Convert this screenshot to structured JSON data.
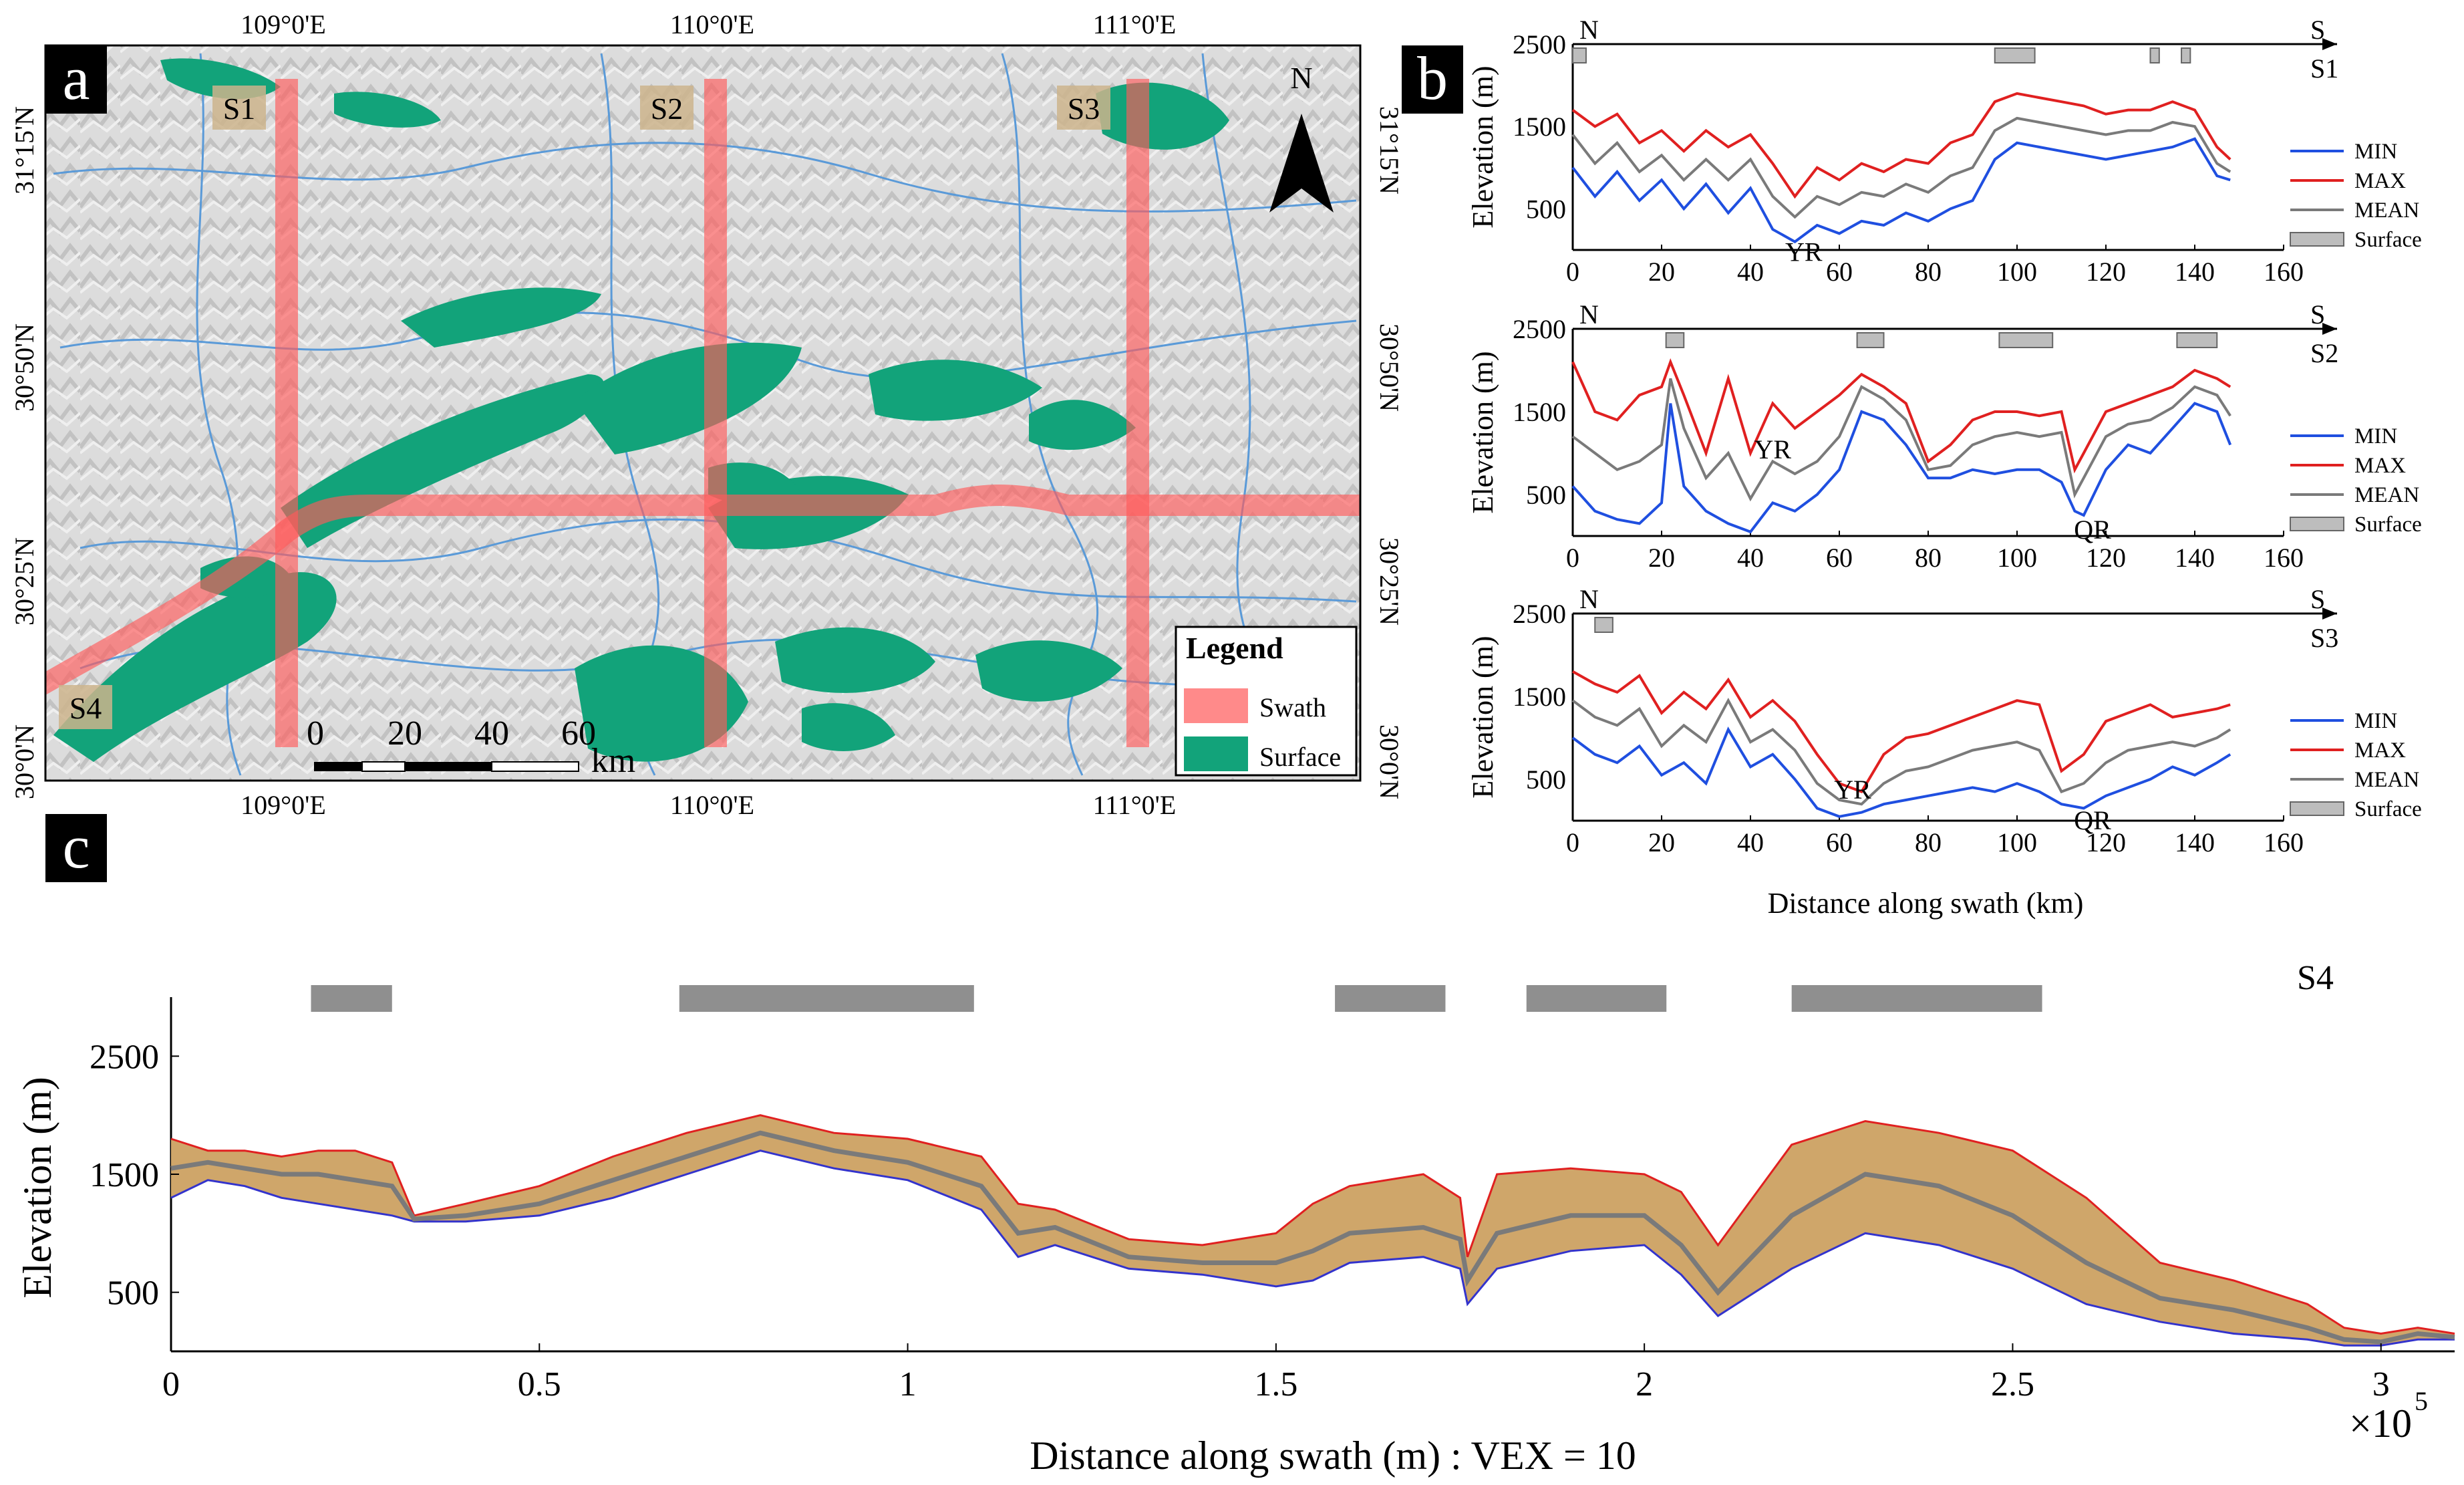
{
  "panels": {
    "a": "a",
    "b": "b",
    "c": "c"
  },
  "map": {
    "top_ticks": [
      "109°0'E",
      "110°0'E",
      "111°0'E"
    ],
    "bottom_ticks": [
      "109°0'E",
      "110°0'E",
      "111°0'E"
    ],
    "left_ticks": [
      "31°15'N",
      "30°50'N",
      "30°25'N",
      "30°0'N"
    ],
    "right_ticks": [
      "31°15'N",
      "30°50'N",
      "30°25'N",
      "30°0'N"
    ],
    "swath_labels": [
      "S1",
      "S2",
      "S3",
      "S4"
    ],
    "north_label": "N",
    "scale_ticks": [
      "0",
      "20",
      "40",
      "60"
    ],
    "scale_unit": "km",
    "legend": {
      "title": "Legend",
      "items": [
        {
          "label": "Swath",
          "color": "#ff7d7d"
        },
        {
          "label": "Surface",
          "color": "#12a37a"
        }
      ]
    },
    "colors": {
      "hillshade": "#d8d8d8",
      "river": "#5a9ad8",
      "swath": "#ff5a5a",
      "surface": "#12a37a"
    }
  },
  "chart_data": [
    {
      "id": "S1",
      "type": "line",
      "title": "S1",
      "direction": {
        "start": "N",
        "end": "S"
      },
      "xlabel": "",
      "ylabel": "Elevation (m)",
      "xlim": [
        0,
        160
      ],
      "ylim": [
        0,
        2500
      ],
      "xticks": [
        0,
        20,
        40,
        60,
        80,
        100,
        120,
        140,
        160
      ],
      "yticks": [
        500,
        1500,
        2500
      ],
      "x": [
        0,
        5,
        10,
        15,
        20,
        25,
        30,
        35,
        40,
        45,
        50,
        55,
        60,
        65,
        70,
        75,
        80,
        85,
        90,
        95,
        100,
        105,
        110,
        115,
        120,
        125,
        130,
        135,
        140,
        145,
        148
      ],
      "series": [
        {
          "name": "MIN",
          "color": "#1f4fe0",
          "values": [
            1000,
            650,
            950,
            600,
            850,
            500,
            800,
            450,
            750,
            250,
            100,
            300,
            200,
            350,
            300,
            450,
            350,
            500,
            600,
            1100,
            1300,
            1250,
            1200,
            1150,
            1100,
            1150,
            1200,
            1250,
            1350,
            900,
            850
          ]
        },
        {
          "name": "MAX",
          "color": "#e02020",
          "values": [
            1700,
            1500,
            1650,
            1300,
            1450,
            1200,
            1450,
            1250,
            1400,
            1050,
            650,
            1000,
            850,
            1050,
            950,
            1100,
            1050,
            1300,
            1400,
            1800,
            1900,
            1850,
            1800,
            1750,
            1650,
            1700,
            1700,
            1800,
            1700,
            1250,
            1100
          ]
        },
        {
          "name": "MEAN",
          "color": "#7a7a7a",
          "values": [
            1400,
            1050,
            1300,
            950,
            1150,
            850,
            1100,
            850,
            1100,
            650,
            400,
            650,
            550,
            700,
            650,
            800,
            700,
            900,
            1000,
            1450,
            1600,
            1550,
            1500,
            1450,
            1400,
            1450,
            1450,
            1550,
            1500,
            1050,
            950
          ]
        }
      ],
      "surface_ranges": [
        [
          0,
          3
        ],
        [
          95,
          104
        ],
        [
          130,
          132
        ],
        [
          137,
          139
        ]
      ],
      "surface_label": "Surface",
      "annotations": [
        {
          "text": "YR",
          "x": 52,
          "y": -20
        }
      ]
    },
    {
      "id": "S2",
      "type": "line",
      "title": "S2",
      "direction": {
        "start": "N",
        "end": "S"
      },
      "xlabel": "",
      "ylabel": "Elevation (m)",
      "xlim": [
        0,
        160
      ],
      "ylim": [
        0,
        2500
      ],
      "xticks": [
        0,
        20,
        40,
        60,
        80,
        100,
        120,
        140,
        160
      ],
      "yticks": [
        500,
        1500,
        2500
      ],
      "x": [
        0,
        5,
        10,
        15,
        20,
        22,
        25,
        30,
        35,
        40,
        45,
        50,
        55,
        60,
        65,
        70,
        75,
        80,
        85,
        90,
        95,
        100,
        105,
        110,
        113,
        115,
        120,
        125,
        130,
        135,
        140,
        145,
        148
      ],
      "series": [
        {
          "name": "MIN",
          "color": "#1f4fe0",
          "values": [
            600,
            300,
            200,
            150,
            400,
            1600,
            600,
            300,
            150,
            50,
            400,
            300,
            500,
            800,
            1500,
            1400,
            1100,
            700,
            700,
            800,
            750,
            800,
            800,
            650,
            300,
            250,
            800,
            1100,
            1000,
            1300,
            1600,
            1500,
            1100
          ]
        },
        {
          "name": "MAX",
          "color": "#e02020",
          "values": [
            2100,
            1500,
            1400,
            1700,
            1800,
            2100,
            1700,
            1000,
            1900,
            1000,
            1600,
            1300,
            1500,
            1700,
            1950,
            1800,
            1600,
            900,
            1100,
            1400,
            1500,
            1500,
            1450,
            1500,
            800,
            1000,
            1500,
            1600,
            1700,
            1800,
            2000,
            1900,
            1800
          ]
        },
        {
          "name": "MEAN",
          "color": "#7a7a7a",
          "values": [
            1200,
            1000,
            800,
            900,
            1100,
            1900,
            1300,
            700,
            1000,
            450,
            900,
            750,
            900,
            1200,
            1800,
            1650,
            1400,
            800,
            850,
            1100,
            1200,
            1250,
            1200,
            1250,
            500,
            700,
            1200,
            1350,
            1400,
            1550,
            1800,
            1700,
            1450
          ]
        }
      ],
      "surface_ranges": [
        [
          21,
          25
        ],
        [
          64,
          70
        ],
        [
          96,
          108
        ],
        [
          136,
          145
        ]
      ],
      "surface_label": "Surface",
      "annotations": [
        {
          "text": "YR",
          "x": 45,
          "y": 1050
        },
        {
          "text": "QR",
          "x": 117,
          "y": 80
        }
      ]
    },
    {
      "id": "S3",
      "type": "line",
      "title": "S3",
      "direction": {
        "start": "N",
        "end": "S"
      },
      "xlabel": "Distance along swath (km)",
      "ylabel": "Elevation (m)",
      "xlim": [
        0,
        160
      ],
      "ylim": [
        0,
        2500
      ],
      "xticks": [
        0,
        20,
        40,
        60,
        80,
        100,
        120,
        140,
        160
      ],
      "yticks": [
        500,
        1500,
        2500
      ],
      "x": [
        0,
        5,
        10,
        15,
        20,
        25,
        30,
        35,
        40,
        45,
        50,
        55,
        60,
        65,
        70,
        75,
        80,
        85,
        90,
        95,
        100,
        105,
        110,
        115,
        120,
        125,
        130,
        135,
        140,
        145,
        148
      ],
      "series": [
        {
          "name": "MIN",
          "color": "#1f4fe0",
          "values": [
            1000,
            800,
            700,
            900,
            550,
            700,
            450,
            1100,
            650,
            800,
            500,
            150,
            50,
            100,
            200,
            250,
            300,
            350,
            400,
            350,
            450,
            350,
            200,
            150,
            300,
            400,
            500,
            650,
            550,
            700,
            800
          ]
        },
        {
          "name": "MAX",
          "color": "#e02020",
          "values": [
            1800,
            1650,
            1550,
            1750,
            1300,
            1550,
            1350,
            1700,
            1250,
            1450,
            1200,
            800,
            450,
            350,
            800,
            1000,
            1050,
            1150,
            1250,
            1350,
            1450,
            1400,
            600,
            800,
            1200,
            1300,
            1400,
            1250,
            1300,
            1350,
            1400
          ]
        },
        {
          "name": "MEAN",
          "color": "#7a7a7a",
          "values": [
            1450,
            1250,
            1150,
            1350,
            900,
            1150,
            950,
            1450,
            950,
            1100,
            850,
            450,
            250,
            200,
            450,
            600,
            650,
            750,
            850,
            900,
            950,
            850,
            350,
            450,
            700,
            850,
            900,
            950,
            900,
            1000,
            1100
          ]
        }
      ],
      "surface_ranges": [
        [
          5,
          9
        ]
      ],
      "surface_label": "Surface",
      "annotations": [
        {
          "text": "YR",
          "x": 63,
          "y": 380
        },
        {
          "text": "QR",
          "x": 117,
          "y": 10
        }
      ]
    },
    {
      "id": "S4",
      "type": "area",
      "title": "S4",
      "xlabel": "Distance along swath (m) : VEX = 10",
      "x_multiplier": "×10",
      "x_multiplier_exp": "5",
      "ylabel": "Elevation (m)",
      "xlim": [
        0,
        3.1
      ],
      "ylim": [
        0,
        3000
      ],
      "xticks": [
        0,
        0.5,
        1,
        1.5,
        2,
        2.5,
        3
      ],
      "xtick_labels": [
        "0",
        "0.5",
        "1",
        "1.5",
        "2",
        "2.5",
        "3"
      ],
      "yticks": [
        500,
        1500,
        2500
      ],
      "x": [
        0,
        0.05,
        0.1,
        0.15,
        0.2,
        0.25,
        0.3,
        0.33,
        0.4,
        0.5,
        0.6,
        0.7,
        0.8,
        0.9,
        1.0,
        1.1,
        1.15,
        1.2,
        1.3,
        1.4,
        1.5,
        1.55,
        1.6,
        1.7,
        1.75,
        1.76,
        1.8,
        1.9,
        2.0,
        2.05,
        2.1,
        2.2,
        2.3,
        2.4,
        2.5,
        2.55,
        2.6,
        2.7,
        2.8,
        2.9,
        2.95,
        3.0,
        3.05,
        3.1
      ],
      "series": [
        {
          "name": "MAX",
          "color": "#e02020",
          "values": [
            1800,
            1700,
            1700,
            1650,
            1700,
            1700,
            1600,
            1150,
            1250,
            1400,
            1650,
            1850,
            2000,
            1850,
            1800,
            1650,
            1250,
            1200,
            950,
            900,
            1000,
            1250,
            1400,
            1500,
            1300,
            800,
            1500,
            1550,
            1500,
            1350,
            900,
            1750,
            1950,
            1850,
            1700,
            1500,
            1300,
            750,
            600,
            400,
            200,
            150,
            200,
            150
          ]
        },
        {
          "name": "MIN",
          "color": "#3333cc",
          "values": [
            1300,
            1450,
            1400,
            1300,
            1250,
            1200,
            1150,
            1100,
            1100,
            1150,
            1300,
            1500,
            1700,
            1550,
            1450,
            1200,
            800,
            900,
            700,
            650,
            550,
            600,
            750,
            800,
            700,
            400,
            700,
            850,
            900,
            650,
            300,
            700,
            1000,
            900,
            700,
            550,
            400,
            250,
            150,
            100,
            50,
            50,
            100,
            100
          ]
        },
        {
          "name": "MEAN",
          "color": "#7a7a7a",
          "values": [
            1550,
            1600,
            1550,
            1500,
            1500,
            1450,
            1400,
            1120,
            1150,
            1250,
            1450,
            1650,
            1850,
            1700,
            1600,
            1400,
            1000,
            1050,
            800,
            750,
            750,
            850,
            1000,
            1050,
            950,
            600,
            1000,
            1150,
            1150,
            900,
            500,
            1150,
            1500,
            1400,
            1150,
            950,
            750,
            450,
            350,
            200,
            100,
            80,
            150,
            120
          ]
        }
      ],
      "band_color": "#cfa66a",
      "surface_ranges": [
        [
          0.19,
          0.3
        ],
        [
          0.69,
          1.09
        ],
        [
          1.58,
          1.73
        ],
        [
          1.84,
          2.03
        ],
        [
          2.2,
          2.54
        ]
      ]
    }
  ],
  "legend_b": [
    "MIN",
    "MAX",
    "MEAN",
    "Surface"
  ]
}
